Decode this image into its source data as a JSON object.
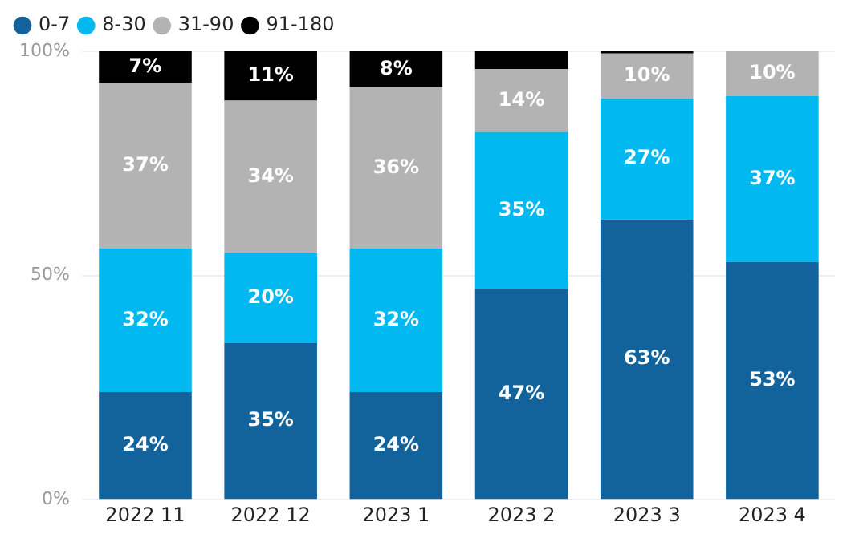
{
  "chart_data": {
    "type": "bar",
    "stacked": true,
    "categories": [
      "2022 11",
      "2022 12",
      "2023 1",
      "2023 2",
      "2023 3",
      "2023 4"
    ],
    "series": [
      {
        "name": "0-7",
        "color": "#12629b",
        "values": [
          24,
          35,
          24,
          47,
          62.5,
          53
        ],
        "value_labels": [
          "24%",
          "35%",
          "24%",
          "47%",
          "63%",
          "53%"
        ]
      },
      {
        "name": "8-30",
        "color": "#01b8f0",
        "values": [
          32,
          20,
          32,
          35,
          27,
          37
        ],
        "value_labels": [
          "32%",
          "20%",
          "32%",
          "35%",
          "27%",
          "37%"
        ]
      },
      {
        "name": "31-90",
        "color": "#b3b3b3",
        "values": [
          37,
          34,
          36,
          14,
          10,
          10
        ],
        "value_labels": [
          "37%",
          "34%",
          "36%",
          "14%",
          "10%",
          "10%"
        ]
      },
      {
        "name": "91-180",
        "color": "#000000",
        "values": [
          7,
          11,
          8,
          4,
          0.5,
          null
        ],
        "value_labels": [
          "7%",
          "11%",
          "8%",
          null,
          null,
          null
        ]
      }
    ],
    "ylim": [
      0,
      100
    ],
    "yticks": [
      {
        "value": 0,
        "label": "0%"
      },
      {
        "value": 50,
        "label": "50%"
      },
      {
        "value": 100,
        "label": "100%"
      }
    ],
    "grid": "y",
    "legend": "top left",
    "marker": "circle"
  }
}
